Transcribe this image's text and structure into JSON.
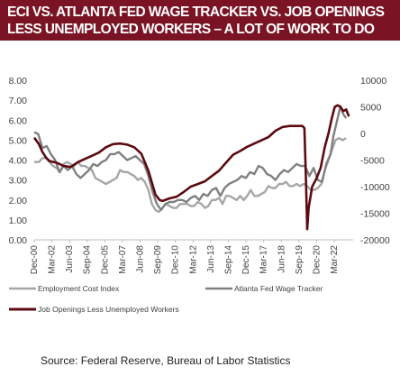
{
  "banner": {
    "title_line1": "ECI VS. ATLANTA FED WAGE TRACKER VS. JOB OPENINGS",
    "title_line2": "LESS UNEMPLOYED WORKERS – A LOT OF WORK TO DO",
    "background": "#7a1424"
  },
  "source_note": "Source: Federal Reserve, Bureau of Labor Statistics",
  "chart_data": {
    "type": "line",
    "title": "",
    "y_left": {
      "ticks": [
        "0.00",
        "1.00",
        "2.00",
        "3.00",
        "4.00",
        "5.00",
        "6.00",
        "7.00",
        "8.00"
      ],
      "range": [
        0,
        8
      ]
    },
    "y_right": {
      "ticks": [
        "10000",
        "5000",
        "0",
        "-5000",
        "-10000",
        "-15000",
        "-20000"
      ],
      "range": [
        -20000,
        10000
      ]
    },
    "x_tick_labels": [
      "Dec-00",
      "Mar-02",
      "Jun-03",
      "Sep-04",
      "Dec-05",
      "Mar-07",
      "Jun-08",
      "Sep-09",
      "Dec-10",
      "Mar-12",
      "Jun-13",
      "Sep-14",
      "Dec-15",
      "Mar-17",
      "Jun-18",
      "Sep-19",
      "Dec-20",
      "Mar-22"
    ],
    "x_range": [
      2000.92,
      2023.5
    ],
    "grid": false,
    "legend_position": "bottom",
    "series": [
      {
        "name": "Employment Cost Index",
        "axis": "left",
        "color": "#a6a6a6",
        "points": [
          [
            2000.92,
            3.9
          ],
          [
            2001.25,
            3.9
          ],
          [
            2001.5,
            4.1
          ],
          [
            2001.75,
            4.1
          ],
          [
            2002.0,
            3.9
          ],
          [
            2002.25,
            3.7
          ],
          [
            2002.5,
            3.6
          ],
          [
            2002.75,
            3.4
          ],
          [
            2003.0,
            3.8
          ],
          [
            2003.25,
            3.9
          ],
          [
            2003.5,
            3.8
          ],
          [
            2003.75,
            3.7
          ],
          [
            2004.0,
            3.9
          ],
          [
            2004.25,
            3.7
          ],
          [
            2004.5,
            3.7
          ],
          [
            2004.75,
            3.6
          ],
          [
            2005.0,
            3.5
          ],
          [
            2005.25,
            3.1
          ],
          [
            2005.5,
            3.0
          ],
          [
            2005.75,
            2.9
          ],
          [
            2006.0,
            2.8
          ],
          [
            2006.25,
            2.9
          ],
          [
            2006.5,
            3.0
          ],
          [
            2006.75,
            3.1
          ],
          [
            2007.0,
            3.5
          ],
          [
            2007.25,
            3.4
          ],
          [
            2007.5,
            3.4
          ],
          [
            2007.75,
            3.3
          ],
          [
            2008.0,
            3.2
          ],
          [
            2008.25,
            3.0
          ],
          [
            2008.5,
            3.1
          ],
          [
            2008.75,
            2.9
          ],
          [
            2009.0,
            2.5
          ],
          [
            2009.25,
            1.8
          ],
          [
            2009.5,
            1.5
          ],
          [
            2009.75,
            1.4
          ],
          [
            2010.0,
            1.6
          ],
          [
            2010.25,
            1.8
          ],
          [
            2010.5,
            1.7
          ],
          [
            2010.75,
            1.6
          ],
          [
            2011.0,
            1.6
          ],
          [
            2011.25,
            1.8
          ],
          [
            2011.5,
            1.8
          ],
          [
            2011.75,
            1.8
          ],
          [
            2012.0,
            1.7
          ],
          [
            2012.25,
            1.7
          ],
          [
            2012.5,
            1.9
          ],
          [
            2012.75,
            1.8
          ],
          [
            2013.0,
            1.6
          ],
          [
            2013.25,
            1.7
          ],
          [
            2013.5,
            2.0
          ],
          [
            2013.75,
            2.0
          ],
          [
            2014.0,
            2.1
          ],
          [
            2014.25,
            1.8
          ],
          [
            2014.5,
            2.2
          ],
          [
            2014.75,
            2.2
          ],
          [
            2015.0,
            2.1
          ],
          [
            2015.25,
            2.0
          ],
          [
            2015.5,
            2.2
          ],
          [
            2015.75,
            2.0
          ],
          [
            2016.0,
            2.2
          ],
          [
            2016.25,
            2.5
          ],
          [
            2016.5,
            2.2
          ],
          [
            2016.75,
            2.2
          ],
          [
            2017.0,
            2.3
          ],
          [
            2017.25,
            2.4
          ],
          [
            2017.5,
            2.7
          ],
          [
            2017.75,
            2.6
          ],
          [
            2018.0,
            2.6
          ],
          [
            2018.25,
            2.8
          ],
          [
            2018.5,
            2.8
          ],
          [
            2018.75,
            2.9
          ],
          [
            2019.0,
            2.7
          ],
          [
            2019.25,
            2.7
          ],
          [
            2019.5,
            2.8
          ],
          [
            2019.75,
            2.7
          ],
          [
            2020.0,
            2.8
          ],
          [
            2020.25,
            2.7
          ],
          [
            2020.5,
            2.5
          ],
          [
            2020.75,
            2.5
          ],
          [
            2021.0,
            2.6
          ],
          [
            2021.25,
            2.8
          ],
          [
            2021.5,
            3.5
          ],
          [
            2021.75,
            4.0
          ],
          [
            2022.0,
            4.5
          ],
          [
            2022.25,
            5.0
          ],
          [
            2022.5,
            5.1
          ],
          [
            2022.75,
            5.0
          ],
          [
            2023.0,
            5.1
          ]
        ]
      },
      {
        "name": "Atlanta Fed Wage Tracker",
        "axis": "left",
        "color": "#808080",
        "points": [
          [
            2000.92,
            5.4
          ],
          [
            2001.2,
            5.3
          ],
          [
            2001.5,
            4.6
          ],
          [
            2001.8,
            4.7
          ],
          [
            2002.1,
            4.3
          ],
          [
            2002.4,
            4.0
          ],
          [
            2002.7,
            3.4
          ],
          [
            2003.0,
            3.7
          ],
          [
            2003.3,
            3.5
          ],
          [
            2003.6,
            3.7
          ],
          [
            2003.9,
            3.3
          ],
          [
            2004.2,
            3.1
          ],
          [
            2004.5,
            3.3
          ],
          [
            2004.8,
            3.5
          ],
          [
            2005.1,
            3.8
          ],
          [
            2005.4,
            3.7
          ],
          [
            2005.7,
            3.9
          ],
          [
            2006.0,
            4.0
          ],
          [
            2006.3,
            4.3
          ],
          [
            2006.6,
            4.3
          ],
          [
            2006.9,
            4.4
          ],
          [
            2007.2,
            4.2
          ],
          [
            2007.5,
            4.0
          ],
          [
            2007.8,
            4.1
          ],
          [
            2008.1,
            4.2
          ],
          [
            2008.4,
            4.0
          ],
          [
            2008.7,
            3.8
          ],
          [
            2009.0,
            3.2
          ],
          [
            2009.3,
            2.4
          ],
          [
            2009.6,
            1.8
          ],
          [
            2009.9,
            1.5
          ],
          [
            2010.2,
            1.8
          ],
          [
            2010.5,
            1.9
          ],
          [
            2010.8,
            1.9
          ],
          [
            2011.1,
            2.0
          ],
          [
            2011.4,
            2.0
          ],
          [
            2011.7,
            1.9
          ],
          [
            2012.0,
            2.1
          ],
          [
            2012.3,
            2.2
          ],
          [
            2012.6,
            2.0
          ],
          [
            2012.9,
            2.3
          ],
          [
            2013.2,
            2.2
          ],
          [
            2013.5,
            2.5
          ],
          [
            2013.8,
            2.6
          ],
          [
            2014.1,
            2.2
          ],
          [
            2014.4,
            2.6
          ],
          [
            2014.7,
            2.8
          ],
          [
            2015.0,
            2.9
          ],
          [
            2015.3,
            3.0
          ],
          [
            2015.6,
            3.2
          ],
          [
            2015.9,
            3.1
          ],
          [
            2016.2,
            3.4
          ],
          [
            2016.5,
            3.3
          ],
          [
            2016.8,
            3.7
          ],
          [
            2017.1,
            3.6
          ],
          [
            2017.4,
            3.3
          ],
          [
            2017.7,
            3.2
          ],
          [
            2018.0,
            3.0
          ],
          [
            2018.3,
            3.3
          ],
          [
            2018.6,
            3.5
          ],
          [
            2018.9,
            3.4
          ],
          [
            2019.2,
            3.6
          ],
          [
            2019.5,
            3.8
          ],
          [
            2019.8,
            3.7
          ],
          [
            2020.1,
            3.7
          ],
          [
            2020.4,
            3.2
          ],
          [
            2020.7,
            3.6
          ],
          [
            2021.0,
            3.0
          ],
          [
            2021.3,
            2.9
          ],
          [
            2021.6,
            3.8
          ],
          [
            2021.9,
            4.3
          ],
          [
            2022.1,
            5.2
          ],
          [
            2022.4,
            6.1
          ],
          [
            2022.6,
            6.7
          ],
          [
            2022.8,
            6.3
          ],
          [
            2023.0,
            6.1
          ]
        ]
      },
      {
        "name": "Job Openings Less Unemployed Workers",
        "axis": "right",
        "color": "#5c0a10",
        "points": [
          [
            2000.92,
            -800
          ],
          [
            2001.25,
            -2000
          ],
          [
            2001.5,
            -3500
          ],
          [
            2001.75,
            -4500
          ],
          [
            2002.0,
            -5200
          ],
          [
            2002.5,
            -5500
          ],
          [
            2003.0,
            -6100
          ],
          [
            2003.5,
            -6300
          ],
          [
            2004.0,
            -5400
          ],
          [
            2004.5,
            -4800
          ],
          [
            2005.0,
            -4200
          ],
          [
            2005.5,
            -3600
          ],
          [
            2006.0,
            -2600
          ],
          [
            2006.5,
            -2000
          ],
          [
            2007.0,
            -1900
          ],
          [
            2007.5,
            -2100
          ],
          [
            2008.0,
            -2600
          ],
          [
            2008.5,
            -3800
          ],
          [
            2009.0,
            -7000
          ],
          [
            2009.5,
            -11500
          ],
          [
            2009.8,
            -12500
          ],
          [
            2010.0,
            -12700
          ],
          [
            2010.5,
            -12200
          ],
          [
            2011.0,
            -11900
          ],
          [
            2011.5,
            -11000
          ],
          [
            2012.0,
            -10000
          ],
          [
            2012.5,
            -9500
          ],
          [
            2013.0,
            -9000
          ],
          [
            2013.5,
            -8000
          ],
          [
            2014.0,
            -7000
          ],
          [
            2014.5,
            -5500
          ],
          [
            2015.0,
            -4000
          ],
          [
            2015.5,
            -3300
          ],
          [
            2016.0,
            -2500
          ],
          [
            2016.5,
            -1900
          ],
          [
            2017.0,
            -1300
          ],
          [
            2017.5,
            -700
          ],
          [
            2018.0,
            500
          ],
          [
            2018.5,
            1200
          ],
          [
            2019.0,
            1400
          ],
          [
            2019.5,
            1400
          ],
          [
            2019.9,
            1400
          ],
          [
            2020.05,
            1000
          ],
          [
            2020.15,
            -8000
          ],
          [
            2020.25,
            -18000
          ],
          [
            2020.35,
            -14000
          ],
          [
            2020.6,
            -10000
          ],
          [
            2020.9,
            -8500
          ],
          [
            2021.2,
            -6500
          ],
          [
            2021.5,
            -2500
          ],
          [
            2021.75,
            0
          ],
          [
            2022.0,
            3000
          ],
          [
            2022.2,
            5000
          ],
          [
            2022.4,
            5300
          ],
          [
            2022.6,
            5000
          ],
          [
            2022.8,
            4200
          ],
          [
            2023.0,
            4500
          ],
          [
            2023.2,
            3200
          ]
        ]
      }
    ]
  }
}
